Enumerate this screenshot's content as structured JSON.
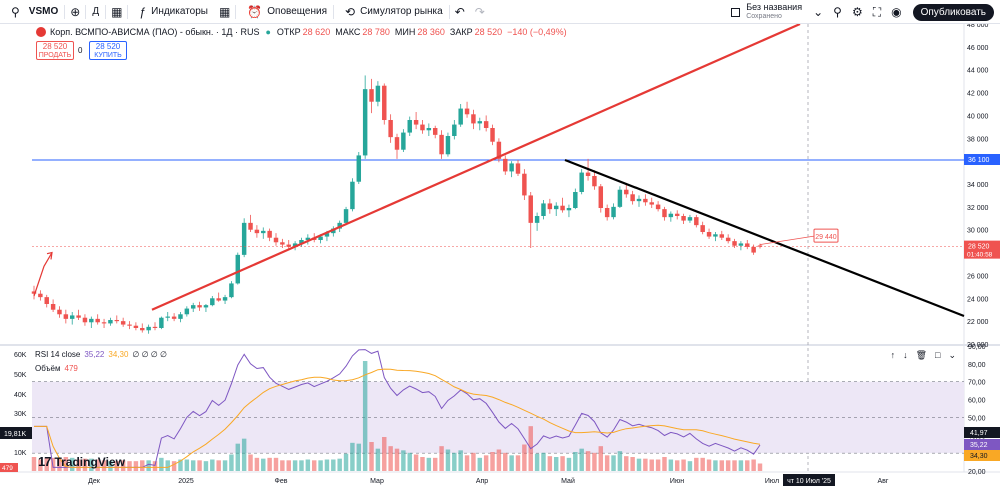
{
  "toolbar": {
    "symbol": "VSMO",
    "add_icon": "plus-circle-icon",
    "interval": "Д",
    "indicators_label": "Индикаторы",
    "alerts_label": "Оповещения",
    "replay_label": "Симулятор рынка",
    "layout_name": "Без названия",
    "layout_status": "Сохранено",
    "publish_label": "Опубликовать"
  },
  "legend": {
    "title": "Корп. ВСМПО-АВИСМА (ПАО) - обыкн. · 1Д · RUS",
    "open_label": "ОТКР",
    "open": "28 620",
    "high_label": "МАКС",
    "high": "28 780",
    "low_label": "МИН",
    "low": "28 360",
    "close_label": "ЗАКР",
    "close": "28 520",
    "change": "−140 (−0,49%)",
    "sell_price": "28 520",
    "sell_label": "ПРОДАТЬ",
    "spread": "0",
    "buy_price": "28 520",
    "buy_label": "КУПИТЬ"
  },
  "rsi_legend": {
    "label": "RSI 14 close",
    "rsi": "35,22",
    "ma": "34,30",
    "zeros": "∅ ∅ ∅ ∅"
  },
  "volume_legend": {
    "label": "Объём",
    "value": "479"
  },
  "branding": {
    "name": "TradingView"
  },
  "colors": {
    "up": "#26a69a",
    "down": "#ef5350",
    "red_trend": "#e53935",
    "black_trend": "#000000",
    "horizontal": "#2962ff",
    "rsi": "#7e57c2",
    "rsi_ma": "#f9a825",
    "rsi_band": "#ede7f6"
  },
  "chart_data": {
    "type": "candlestick",
    "title": "Корп. ВСМПО-АВИСМА (ПАО) - обыкн.",
    "price_axis": {
      "range": [
        20000,
        48000
      ],
      "ticks": [
        "48 000",
        "46 000",
        "44 000",
        "42 000",
        "40 000",
        "38 000",
        "36 000",
        "34 000",
        "32 000",
        "30 000",
        "28 000",
        "26 000",
        "24 000",
        "22 000",
        "20 000"
      ],
      "labels": [
        {
          "text": "36 100",
          "value": 36100,
          "color": "#2962ff"
        },
        {
          "text": "28 520",
          "sub": "01:40:58",
          "value": 28520,
          "color": "#ef5350"
        }
      ]
    },
    "time_axis": {
      "ticks": [
        "Дек",
        "2025",
        "Фев",
        "Мар",
        "Апр",
        "Май",
        "Июн",
        "Июл",
        "Авг"
      ],
      "cursor_label": "чт 10 Июл '25"
    },
    "candles": [
      [
        24600,
        25100,
        23900,
        24400
      ],
      [
        24400,
        24700,
        23800,
        24100
      ],
      [
        24100,
        24300,
        23200,
        23500
      ],
      [
        23500,
        23900,
        22800,
        23000
      ],
      [
        23000,
        23300,
        22300,
        22600
      ],
      [
        22600,
        23000,
        21800,
        22200
      ],
      [
        22200,
        22800,
        21700,
        22500
      ],
      [
        22500,
        23000,
        22100,
        22300
      ],
      [
        22300,
        22600,
        21600,
        21900
      ],
      [
        21900,
        22400,
        21400,
        22200
      ],
      [
        22200,
        22600,
        21700,
        21900
      ],
      [
        21900,
        22200,
        21400,
        21800
      ],
      [
        21800,
        22300,
        21600,
        22100
      ],
      [
        22100,
        22500,
        21800,
        22000
      ],
      [
        22000,
        22300,
        21500,
        21700
      ],
      [
        21700,
        22000,
        21300,
        21600
      ],
      [
        21600,
        21900,
        21200,
        21400
      ],
      [
        21400,
        21800,
        21000,
        21200
      ],
      [
        21200,
        21700,
        20900,
        21500
      ],
      [
        21500,
        21900,
        21200,
        21400
      ],
      [
        21400,
        22400,
        21300,
        22300
      ],
      [
        22300,
        22800,
        22000,
        22400
      ],
      [
        22400,
        22700,
        22000,
        22200
      ],
      [
        22200,
        22800,
        21900,
        22600
      ],
      [
        22600,
        23300,
        22400,
        23100
      ],
      [
        23100,
        23600,
        22800,
        23400
      ],
      [
        23400,
        23700,
        22900,
        23200
      ],
      [
        23200,
        23500,
        22800,
        23400
      ],
      [
        23400,
        24200,
        23300,
        24000
      ],
      [
        24000,
        24500,
        23700,
        23800
      ],
      [
        23800,
        24300,
        23500,
        24100
      ],
      [
        24100,
        25500,
        24000,
        25300
      ],
      [
        25300,
        28000,
        25200,
        27800
      ],
      [
        27800,
        31000,
        27600,
        30600
      ],
      [
        30600,
        31300,
        29800,
        30000
      ],
      [
        30000,
        30400,
        29300,
        29700
      ],
      [
        29700,
        30200,
        29200,
        29900
      ],
      [
        29900,
        30100,
        29000,
        29300
      ],
      [
        29300,
        29700,
        28600,
        28900
      ],
      [
        28900,
        29200,
        28400,
        28700
      ],
      [
        28700,
        29100,
        28300,
        28500
      ],
      [
        28500,
        29000,
        28200,
        28800
      ],
      [
        28800,
        29300,
        28500,
        29100
      ],
      [
        29100,
        29600,
        28700,
        29300
      ],
      [
        29300,
        29700,
        28900,
        29100
      ],
      [
        29100,
        29600,
        28800,
        29400
      ],
      [
        29400,
        29900,
        29000,
        29700
      ],
      [
        29700,
        30300,
        29400,
        30100
      ],
      [
        30100,
        30800,
        29800,
        30600
      ],
      [
        30600,
        32000,
        30400,
        31800
      ],
      [
        31800,
        34500,
        31600,
        34200
      ],
      [
        34200,
        36800,
        34000,
        36500
      ],
      [
        36500,
        43500,
        36200,
        42300
      ],
      [
        42300,
        43200,
        40200,
        41200
      ],
      [
        41200,
        43000,
        40800,
        42600
      ],
      [
        42600,
        42800,
        39200,
        39600
      ],
      [
        39600,
        40100,
        37600,
        38100
      ],
      [
        38100,
        38400,
        36200,
        37000
      ],
      [
        37000,
        38800,
        36800,
        38500
      ],
      [
        38500,
        39900,
        38200,
        39600
      ],
      [
        39600,
        40300,
        38800,
        39200
      ],
      [
        39200,
        39600,
        38400,
        38700
      ],
      [
        38700,
        39300,
        38200,
        38900
      ],
      [
        38900,
        39100,
        38000,
        38300
      ],
      [
        38300,
        38700,
        36200,
        36600
      ],
      [
        36600,
        38500,
        36400,
        38200
      ],
      [
        38200,
        39600,
        37900,
        39200
      ],
      [
        39200,
        41000,
        39000,
        40600
      ],
      [
        40600,
        41200,
        39800,
        40100
      ],
      [
        40100,
        40500,
        38800,
        39300
      ],
      [
        39300,
        39800,
        38700,
        39500
      ],
      [
        39500,
        40000,
        38600,
        38900
      ],
      [
        38900,
        39200,
        37400,
        37700
      ],
      [
        37700,
        38000,
        35900,
        36200
      ],
      [
        36200,
        36500,
        34800,
        35100
      ],
      [
        35100,
        36000,
        34600,
        35800
      ],
      [
        35800,
        36100,
        34700,
        34900
      ],
      [
        34900,
        35300,
        32600,
        33000
      ],
      [
        33000,
        33300,
        28400,
        30600
      ],
      [
        30600,
        31500,
        29900,
        31200
      ],
      [
        31200,
        32600,
        30900,
        32300
      ],
      [
        32300,
        32700,
        31400,
        31800
      ],
      [
        31800,
        32400,
        31200,
        32100
      ],
      [
        32100,
        32800,
        31500,
        31700
      ],
      [
        31700,
        32200,
        31100,
        31900
      ],
      [
        31900,
        33600,
        31800,
        33300
      ],
      [
        33300,
        35300,
        33100,
        35000
      ],
      [
        35000,
        36200,
        34300,
        34700
      ],
      [
        34700,
        35200,
        33500,
        33800
      ],
      [
        33800,
        34000,
        31500,
        31900
      ],
      [
        31900,
        32200,
        30800,
        31100
      ],
      [
        31100,
        32300,
        30900,
        32000
      ],
      [
        32000,
        33800,
        31900,
        33500
      ],
      [
        33500,
        34100,
        32800,
        33100
      ],
      [
        33100,
        33400,
        32200,
        32500
      ],
      [
        32500,
        33000,
        32000,
        32700
      ],
      [
        32700,
        33100,
        32100,
        32400
      ],
      [
        32400,
        32800,
        31900,
        32200
      ],
      [
        32200,
        32500,
        31600,
        31800
      ],
      [
        31800,
        32000,
        30800,
        31100
      ],
      [
        31100,
        31600,
        30700,
        31400
      ],
      [
        31400,
        31700,
        30900,
        31200
      ],
      [
        31200,
        31400,
        30500,
        30800
      ],
      [
        30800,
        31300,
        30600,
        31100
      ],
      [
        31100,
        31300,
        30200,
        30400
      ],
      [
        30400,
        30700,
        29600,
        29800
      ],
      [
        29800,
        30100,
        29200,
        29400
      ],
      [
        29400,
        29800,
        29000,
        29600
      ],
      [
        29600,
        29900,
        29100,
        29300
      ],
      [
        29300,
        29600,
        28800,
        29000
      ],
      [
        29000,
        29200,
        28400,
        28600
      ],
      [
        28600,
        29000,
        28200,
        28800
      ],
      [
        28800,
        29100,
        28300,
        28500
      ],
      [
        28500,
        28700,
        27800,
        28000
      ],
      [
        28620,
        28780,
        28360,
        28520
      ]
    ],
    "horizontal_line": 36100,
    "rsi_axis": {
      "range": [
        20,
        90
      ],
      "ticks": [
        "90,00",
        "80,00",
        "70,00",
        "60,00",
        "50,00",
        "40,00",
        "30,00",
        "20,00"
      ],
      "overbought": 70,
      "oversold": 30,
      "labels": [
        "41,97",
        "35,22",
        "34,30"
      ]
    },
    "volume_axis": {
      "ticks": [
        "60K",
        "50K",
        "40K",
        "30K",
        "20K",
        "10K"
      ],
      "labels": [
        "19,81K",
        "479"
      ]
    },
    "trend_label": "29 440"
  }
}
